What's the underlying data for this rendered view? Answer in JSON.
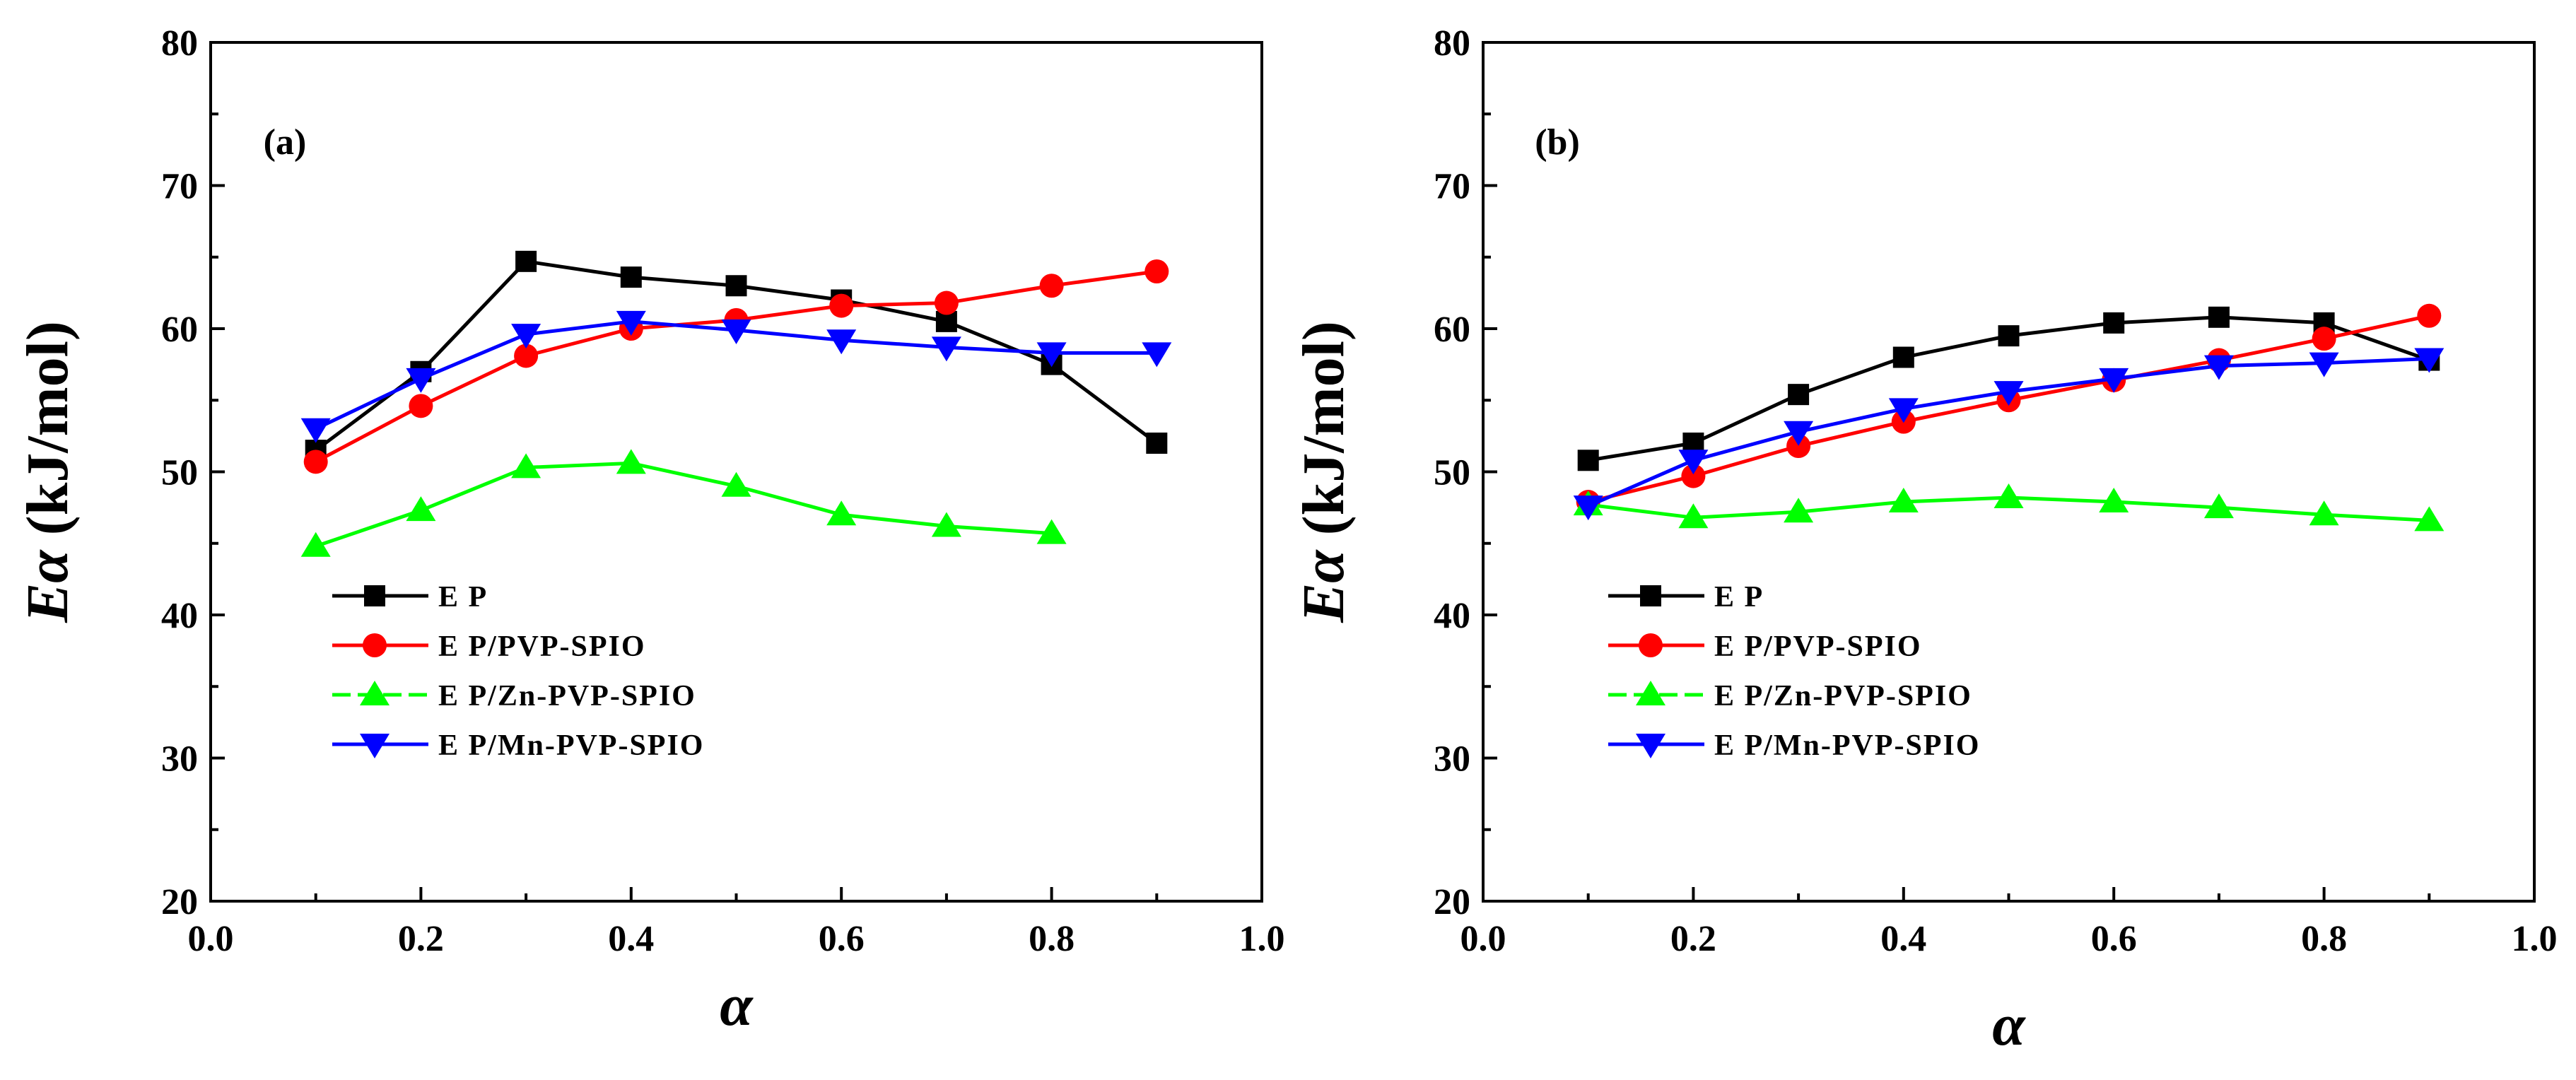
{
  "chart_data": [
    {
      "type": "line",
      "panel": "(a)",
      "xlabel": "α",
      "ylabel_symbol": "Eα",
      "ylabel_unit": "(kJ/mol)",
      "xlim": [
        0.0,
        1.0
      ],
      "ylim": [
        20,
        80
      ],
      "xticks": [
        "0.0",
        "0.2",
        "0.4",
        "0.6",
        "0.8",
        "1.0"
      ],
      "yticks": [
        "20",
        "30",
        "40",
        "50",
        "60",
        "70",
        "80"
      ],
      "legend_position": "lower-left",
      "series": [
        {
          "name": "E P",
          "color": "#000000",
          "marker": "square",
          "x": [
            0.1,
            0.2,
            0.3,
            0.4,
            0.5,
            0.6,
            0.7,
            0.8,
            0.9
          ],
          "y": [
            51.5,
            57.0,
            64.7,
            63.6,
            63.0,
            62.0,
            60.5,
            57.5,
            52.0
          ]
        },
        {
          "name": "E P/PVP-SPIO",
          "color": "#ff0000",
          "marker": "circle",
          "x": [
            0.1,
            0.2,
            0.3,
            0.4,
            0.5,
            0.6,
            0.7,
            0.8,
            0.9
          ],
          "y": [
            50.7,
            54.6,
            58.1,
            60.0,
            60.6,
            61.6,
            61.8,
            63.0,
            64.0
          ]
        },
        {
          "name": "E P/Zn-PVP-SPIO",
          "color": "#00ff00",
          "marker": "triangle-up",
          "x": [
            0.1,
            0.2,
            0.3,
            0.4,
            0.5,
            0.6,
            0.7,
            0.8
          ],
          "y": [
            44.8,
            47.3,
            50.3,
            50.6,
            49.0,
            47.0,
            46.2,
            45.7
          ]
        },
        {
          "name": "E P/Mn-PVP-SPIO",
          "color": "#0000ff",
          "marker": "triangle-down",
          "x": [
            0.1,
            0.2,
            0.3,
            0.4,
            0.5,
            0.6,
            0.7,
            0.8,
            0.9
          ],
          "y": [
            53.0,
            56.5,
            59.6,
            60.5,
            59.9,
            59.2,
            58.7,
            58.3,
            58.3
          ]
        }
      ]
    },
    {
      "type": "line",
      "panel": "(b)",
      "xlabel": "α",
      "ylabel_symbol": "Eα",
      "ylabel_unit": "(kJ/mol)",
      "xlim": [
        0.0,
        1.0
      ],
      "ylim": [
        20,
        80
      ],
      "xticks": [
        "0.0",
        "0.2",
        "0.4",
        "0.6",
        "0.8",
        "1.0"
      ],
      "yticks": [
        "20",
        "30",
        "40",
        "50",
        "60",
        "70",
        "80"
      ],
      "legend_position": "lower-left",
      "series": [
        {
          "name": "E P",
          "color": "#000000",
          "marker": "square",
          "x": [
            0.1,
            0.2,
            0.3,
            0.4,
            0.5,
            0.6,
            0.7,
            0.8,
            0.9
          ],
          "y": [
            50.8,
            52.0,
            55.4,
            58.0,
            59.5,
            60.4,
            60.8,
            60.4,
            57.8
          ]
        },
        {
          "name": "E P/PVP-SPIO",
          "color": "#ff0000",
          "marker": "circle",
          "x": [
            0.1,
            0.2,
            0.3,
            0.4,
            0.5,
            0.6,
            0.7,
            0.8,
            0.9
          ],
          "y": [
            47.9,
            49.7,
            51.8,
            53.5,
            55.0,
            56.4,
            57.8,
            59.3,
            60.9
          ]
        },
        {
          "name": "E P/Zn-PVP-SPIO",
          "color": "#00ff00",
          "marker": "triangle-up",
          "x": [
            0.1,
            0.2,
            0.3,
            0.4,
            0.5,
            0.6,
            0.7,
            0.8,
            0.9
          ],
          "y": [
            47.7,
            46.8,
            47.2,
            47.9,
            48.2,
            47.9,
            47.5,
            47.0,
            46.6
          ]
        },
        {
          "name": "E P/Mn-PVP-SPIO",
          "color": "#0000ff",
          "marker": "triangle-down",
          "x": [
            0.1,
            0.2,
            0.3,
            0.4,
            0.5,
            0.6,
            0.7,
            0.8,
            0.9
          ],
          "y": [
            47.6,
            50.8,
            52.8,
            54.4,
            55.6,
            56.5,
            57.4,
            57.6,
            57.9
          ]
        }
      ]
    }
  ]
}
